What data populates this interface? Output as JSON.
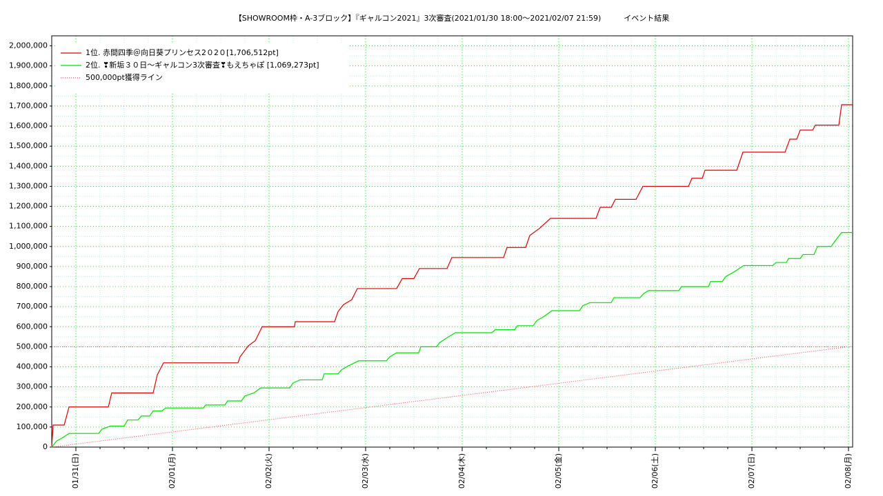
{
  "chart_data": {
    "type": "line",
    "title": "【SHOWROOM枠・A-3ブロック】『ギャルコン2021』3次審査(2021/01/30 18:00～2021/02/07 21:59)　　　イベント結果",
    "xlim": [
      0,
      8.293
    ],
    "xticks": [
      {
        "value": 0.25,
        "label": "01/31(日)"
      },
      {
        "value": 1.25,
        "label": "02/01(月)"
      },
      {
        "value": 2.25,
        "label": "02/02(火)"
      },
      {
        "value": 3.25,
        "label": "02/03(水)"
      },
      {
        "value": 4.25,
        "label": "02/04(木)"
      },
      {
        "value": 5.25,
        "label": "02/05(金)"
      },
      {
        "value": 6.25,
        "label": "02/06(土)"
      },
      {
        "value": 7.25,
        "label": "02/07(日)"
      },
      {
        "value": 8.25,
        "label": "02/08(月)"
      }
    ],
    "ylim": [
      0,
      2050000
    ],
    "yticks": [
      0,
      {
        "value": 100000,
        "label": "100,000"
      },
      {
        "value": 200000,
        "label": "200,000"
      },
      {
        "value": 300000,
        "label": "300,000"
      },
      {
        "value": 400000,
        "label": "400,000"
      },
      {
        "value": 500000,
        "label": "500,000"
      },
      {
        "value": 600000,
        "label": "600,000"
      },
      {
        "value": 700000,
        "label": "700,000"
      },
      {
        "value": 800000,
        "label": "800,000"
      },
      {
        "value": 900000,
        "label": "900,000"
      },
      {
        "value": 1000000,
        "label": "1,000,000"
      },
      {
        "value": 1100000,
        "label": "1,100,000"
      },
      {
        "value": 1200000,
        "label": "1,200,000"
      },
      {
        "value": 1300000,
        "label": "1,300,000"
      },
      {
        "value": 1400000,
        "label": "1,400,000"
      },
      {
        "value": 1500000,
        "label": "1,500,000"
      },
      {
        "value": 1600000,
        "label": "1,600,000"
      },
      {
        "value": 1700000,
        "label": "1,700,000"
      },
      {
        "value": 1800000,
        "label": "1,800,000"
      },
      {
        "value": 1900000,
        "label": "1,900,000"
      },
      {
        "value": 2000000,
        "label": "2,000,000"
      }
    ],
    "grid": true,
    "grid_color": "#00dd00",
    "reference_lines": [
      {
        "value": 500000,
        "color": "#ff4040"
      }
    ],
    "legend": "top-left",
    "series": [
      {
        "name": "1位. 赤間四季＠向日葵プリンセス2０2０[1,706,512pt]",
        "color": "#dd0000",
        "style": "solid",
        "x": [
          0,
          0.014,
          0.129,
          0.179,
          0.586,
          0.621,
          1.05,
          1.093,
          1.157,
          1.929,
          1.95,
          2.036,
          2.107,
          2.179,
          2.514,
          2.521,
          2.929,
          2.964,
          3.021,
          3.107,
          3.164,
          3.571,
          3.629,
          3.75,
          3.807,
          4.093,
          4.143,
          4.679,
          4.714,
          4.907,
          4.95,
          5.05,
          5.164,
          5.636,
          5.679,
          5.793,
          5.836,
          6.05,
          6.121,
          6.593,
          6.629,
          6.736,
          6.764,
          7.093,
          7.157,
          7.593,
          7.643,
          7.714,
          7.75,
          7.879,
          7.907,
          8.15,
          8.179,
          8.293
        ],
        "values": [
          0,
          110000,
          110000,
          200000,
          200000,
          270000,
          270000,
          360000,
          420000,
          420000,
          450000,
          505000,
          530000,
          600000,
          600000,
          625000,
          625000,
          675000,
          710000,
          735000,
          790000,
          790000,
          840000,
          840000,
          890000,
          890000,
          945000,
          945000,
          995000,
          995000,
          1055000,
          1090000,
          1140000,
          1140000,
          1195000,
          1195000,
          1235000,
          1235000,
          1300000,
          1300000,
          1340000,
          1340000,
          1380000,
          1380000,
          1470000,
          1470000,
          1535000,
          1535000,
          1580000,
          1580000,
          1605000,
          1605000,
          1706512,
          1706512
        ]
      },
      {
        "name": "2位. ❣新垢３０日～ギャルコン3次審査❣もえちゃぽ [1,069,273pt]",
        "color": "#00e000",
        "style": "solid",
        "x": [
          0,
          0.05,
          0.107,
          0.179,
          0.486,
          0.521,
          0.607,
          0.75,
          0.786,
          0.893,
          0.929,
          1.014,
          1.05,
          1.143,
          1.179,
          1.571,
          1.593,
          1.793,
          1.821,
          1.964,
          2,
          2.093,
          2.164,
          2.464,
          2.5,
          2.571,
          2.8,
          2.821,
          2.964,
          3,
          3.071,
          3.179,
          3.464,
          3.5,
          3.571,
          3.8,
          3.821,
          3.986,
          4.014,
          4.093,
          4.179,
          4.557,
          4.593,
          4.793,
          4.821,
          4.986,
          5.021,
          5.093,
          5.179,
          5.464,
          5.5,
          5.571,
          5.793,
          5.821,
          6.093,
          6.129,
          6.179,
          6.493,
          6.521,
          6.8,
          6.821,
          6.943,
          6.979,
          7.071,
          7.164,
          7.464,
          7.5,
          7.607,
          7.629,
          7.75,
          7.779,
          7.893,
          7.929,
          8.071,
          8.107,
          8.179,
          8.293
        ],
        "values": [
          0,
          30000,
          45000,
          68000,
          68000,
          90000,
          105000,
          105000,
          135000,
          135000,
          155000,
          155000,
          180000,
          180000,
          195000,
          195000,
          210000,
          210000,
          230000,
          230000,
          255000,
          270000,
          295000,
          295000,
          320000,
          335000,
          335000,
          365000,
          365000,
          385000,
          405000,
          430000,
          430000,
          450000,
          470000,
          470000,
          500000,
          500000,
          520000,
          545000,
          570000,
          570000,
          585000,
          585000,
          605000,
          605000,
          630000,
          650000,
          680000,
          680000,
          705000,
          720000,
          720000,
          745000,
          745000,
          765000,
          780000,
          780000,
          800000,
          800000,
          825000,
          825000,
          850000,
          875000,
          905000,
          905000,
          920000,
          920000,
          940000,
          940000,
          960000,
          960000,
          1000000,
          1000000,
          1025000,
          1069273,
          1069273
        ]
      },
      {
        "name": "500,000pt獲得ライン",
        "color": "#ff4040",
        "style": "dotted",
        "x": [
          0,
          8.25
        ],
        "values": [
          0,
          500000
        ]
      }
    ]
  }
}
